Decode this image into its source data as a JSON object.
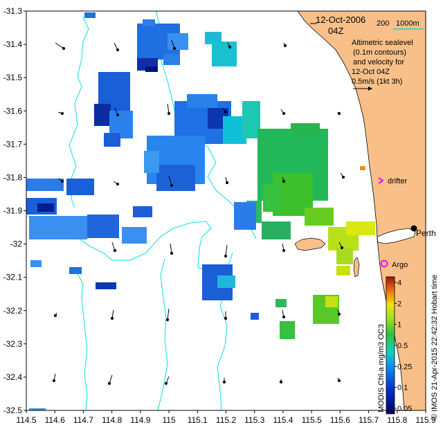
{
  "map": {
    "x_ticks": [
      "114.5",
      "114.6",
      "114.7",
      "114.8",
      "114.9",
      "115",
      "115.1",
      "115.2",
      "115.3",
      "115.4",
      "115.5",
      "115.6",
      "115.7",
      "115.8",
      "115.9"
    ],
    "y_ticks": [
      "-31.3",
      "-31.4",
      "-31.5",
      "-31.6",
      "-31.7",
      "-31.8",
      "-31.9",
      "-32",
      "-32.1",
      "-32.2",
      "-32.3",
      "-32.4",
      "-32.5"
    ],
    "lon_range": [
      114.5,
      115.9
    ],
    "lat_range": [
      -32.5,
      -31.3
    ],
    "date": "12-Oct-2006",
    "time": "04Z",
    "scale_bar": "200",
    "scale_units": "1000m",
    "legend_lines": [
      "Altimetric sealevel",
      "(0.1m contours)",
      "and velocity for",
      "12-Oct 04Z",
      "0.5m/s (1kt 3h)"
    ],
    "labels": {
      "drifter": "drifter",
      "perth": "Perth",
      "argo": "Argo"
    },
    "colorbar": {
      "ticks": [
        "4",
        "2",
        "1",
        "0.5",
        "0.25",
        "0.1",
        "0.05"
      ],
      "label": "MODIS Chl-a mg/m3 OC3"
    },
    "credit": "© IMOS 21-Apr-2015 22:42:32 Hobart time",
    "colors": {
      "land": "#f8c088",
      "contour": "#00e0e0",
      "drifter_marker": "#ff00ff",
      "argo_marker": "#ff00ff"
    }
  }
}
